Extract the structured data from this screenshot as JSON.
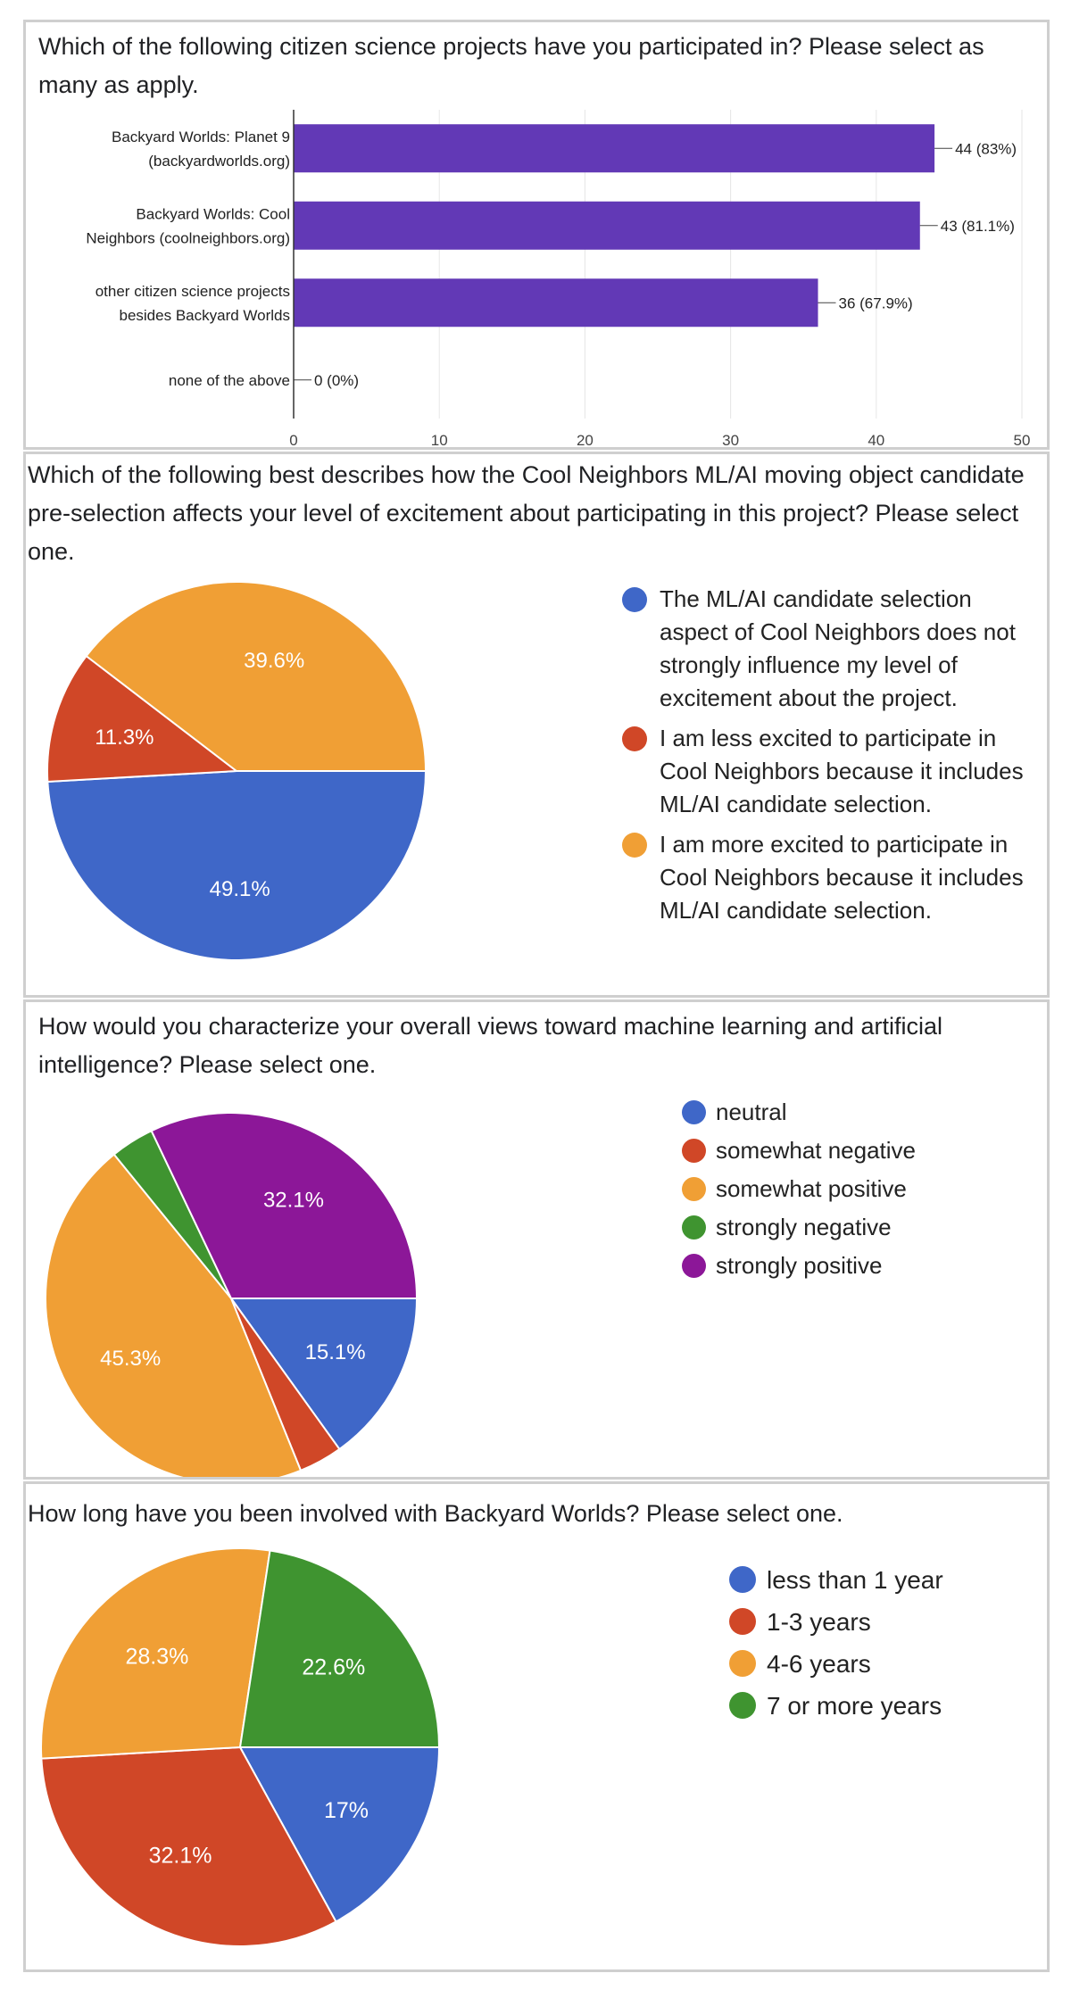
{
  "colors": {
    "bar": "#6239b6",
    "blue": "#3f67c8",
    "red": "#d04727",
    "orange": "#f09f35",
    "green": "#3f9430",
    "purple": "#8c1798",
    "grid": "#e6e6e6",
    "axis": "#333333",
    "panel_border": "#cfcfcf"
  },
  "chart_data": [
    {
      "type": "bar",
      "orientation": "horizontal",
      "title": "Which of the following citizen science projects have you participated in? Please select as many as apply.",
      "categories": [
        [
          "Backyard Worlds: Planet 9",
          "(backyardworlds.org)"
        ],
        [
          "Backyard Worlds: Cool",
          "Neighbors (coolneighbors.org)"
        ],
        [
          "other citizen science projects",
          "besides Backyard Worlds"
        ],
        [
          "none of the above"
        ]
      ],
      "values": [
        44,
        43,
        36,
        0
      ],
      "data_labels": [
        "44 (83%)",
        "43 (81.1%)",
        "36 (67.9%)",
        "0 (0%)"
      ],
      "xlim": [
        0,
        50
      ],
      "xticks": [
        0,
        10,
        20,
        30,
        40,
        50
      ],
      "grid": true,
      "xlabel": "",
      "ylabel": ""
    },
    {
      "type": "pie",
      "title": "Which of the following best describes how the Cool Neighbors ML/AI moving object candidate pre-selection affects your level of excitement about participating in this project? Please select one.",
      "slices": [
        {
          "label": "The ML/AI candidate selection aspect of Cool Neighbors does not strongly influence my level of excitement about the project.",
          "value": 49.1,
          "display": "49.1%",
          "color": "#3f67c8"
        },
        {
          "label": "I am less excited to participate in Cool Neighbors because it includes ML/AI candidate selection.",
          "value": 11.3,
          "display": "11.3%",
          "color": "#d04727"
        },
        {
          "label": "I am more excited to participate in Cool Neighbors because it includes ML/AI candidate selection.",
          "value": 39.6,
          "display": "39.6%",
          "color": "#f09f35"
        }
      ],
      "legend_position": "right"
    },
    {
      "type": "pie",
      "title": "How would you characterize your overall views toward machine learning and artificial intelligence?  Please select one.",
      "slices": [
        {
          "label": "neutral",
          "value": 15.1,
          "display": "15.1%",
          "color": "#3f67c8"
        },
        {
          "label": "somewhat negative",
          "value": 3.8,
          "display": "",
          "color": "#d04727"
        },
        {
          "label": "somewhat positive",
          "value": 45.3,
          "display": "45.3%",
          "color": "#f09f35"
        },
        {
          "label": "strongly negative",
          "value": 3.8,
          "display": "",
          "color": "#3f9430"
        },
        {
          "label": "strongly positive",
          "value": 32.1,
          "display": "32.1%",
          "color": "#8c1798"
        }
      ],
      "legend_position": "right"
    },
    {
      "type": "pie",
      "title": "How long have you been involved with Backyard Worlds? Please select one.",
      "slices": [
        {
          "label": "less than 1 year",
          "value": 17,
          "display": "17%",
          "color": "#3f67c8"
        },
        {
          "label": "1-3 years",
          "value": 32.1,
          "display": "32.1%",
          "color": "#d04727"
        },
        {
          "label": "4-6 years",
          "value": 28.3,
          "display": "28.3%",
          "color": "#f09f35"
        },
        {
          "label": "7 or more years",
          "value": 22.6,
          "display": "22.6%",
          "color": "#3f9430"
        }
      ],
      "legend_position": "right"
    }
  ]
}
